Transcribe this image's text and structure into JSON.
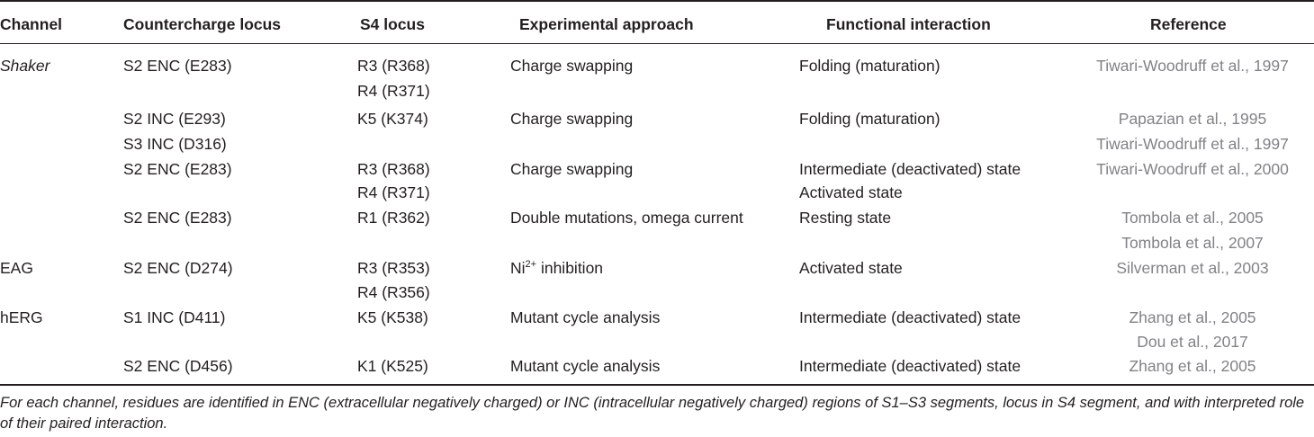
{
  "table": {
    "headers": {
      "channel": "Channel",
      "countercharge": "Countercharge locus",
      "s4": "S4 locus",
      "approach": "Experimental approach",
      "interaction": "Functional interaction",
      "reference": "Reference"
    },
    "rows": [
      {
        "channel": "Shaker",
        "countercharge": "S2 ENC (E283)",
        "s4": "R3 (R368)",
        "approach": "Charge swapping",
        "interaction": "Folding (maturation)",
        "reference": "Tiwari-Woodruff et al., 1997"
      },
      {
        "channel": "",
        "countercharge": "",
        "s4": "R4 (R371)",
        "approach": "",
        "interaction": "",
        "reference": ""
      },
      {
        "channel": "",
        "countercharge": "S2 INC (E293)",
        "s4": "K5 (K374)",
        "approach": "Charge swapping",
        "interaction": "Folding (maturation)",
        "reference": "Papazian et al., 1995"
      },
      {
        "channel": "",
        "countercharge": "S3 INC (D316)",
        "s4": "",
        "approach": "",
        "interaction": "",
        "reference": "Tiwari-Woodruff et al., 1997"
      },
      {
        "channel": "",
        "countercharge": "S2 ENC (E283)",
        "s4": "R3 (R368)",
        "approach": "Charge swapping",
        "interaction": "Intermediate (deactivated) state",
        "reference": "Tiwari-Woodruff et al., 2000"
      },
      {
        "channel": "",
        "countercharge": "",
        "s4": "R4 (R371)",
        "approach": "",
        "interaction": "Activated state",
        "reference": ""
      },
      {
        "channel": "",
        "countercharge": "S2 ENC (E283)",
        "s4": "R1 (R362)",
        "approach": "Double mutations, omega current",
        "interaction": "Resting state",
        "reference": "Tombola et al., 2005"
      },
      {
        "channel": "",
        "countercharge": "",
        "s4": "",
        "approach": "",
        "interaction": "",
        "reference": "Tombola et al., 2007"
      },
      {
        "channel": "EAG",
        "countercharge": "S2 ENC (D274)",
        "s4": "R3 (R353)",
        "approach": "inhibition",
        "approach_prefix": "Ni",
        "approach_sup": "2+",
        "interaction": "Activated state",
        "reference": "Silverman et al., 2003"
      },
      {
        "channel": "",
        "countercharge": "",
        "s4": "R4 (R356)",
        "approach": "",
        "interaction": "",
        "reference": ""
      },
      {
        "channel": "hERG",
        "countercharge": "S1 INC (D411)",
        "s4": "K5 (K538)",
        "approach": "Mutant cycle analysis",
        "interaction": "Intermediate (deactivated) state",
        "reference": "Zhang et al., 2005"
      },
      {
        "channel": "",
        "countercharge": "",
        "s4": "",
        "approach": "",
        "interaction": "",
        "reference": "Dou et al., 2017"
      },
      {
        "channel": "",
        "countercharge": "S2 ENC (D456)",
        "s4": "K1 (K525)",
        "approach": "Mutant cycle analysis",
        "interaction": "Intermediate (deactivated) state",
        "reference": "Zhang et al., 2005"
      }
    ]
  },
  "footnote": "For each channel, residues are identified in ENC (extracellular negatively charged) or INC (intracellular negatively charged) regions of S1–S3 segments, locus in S4 segment, and with interpreted role of their paired interaction."
}
